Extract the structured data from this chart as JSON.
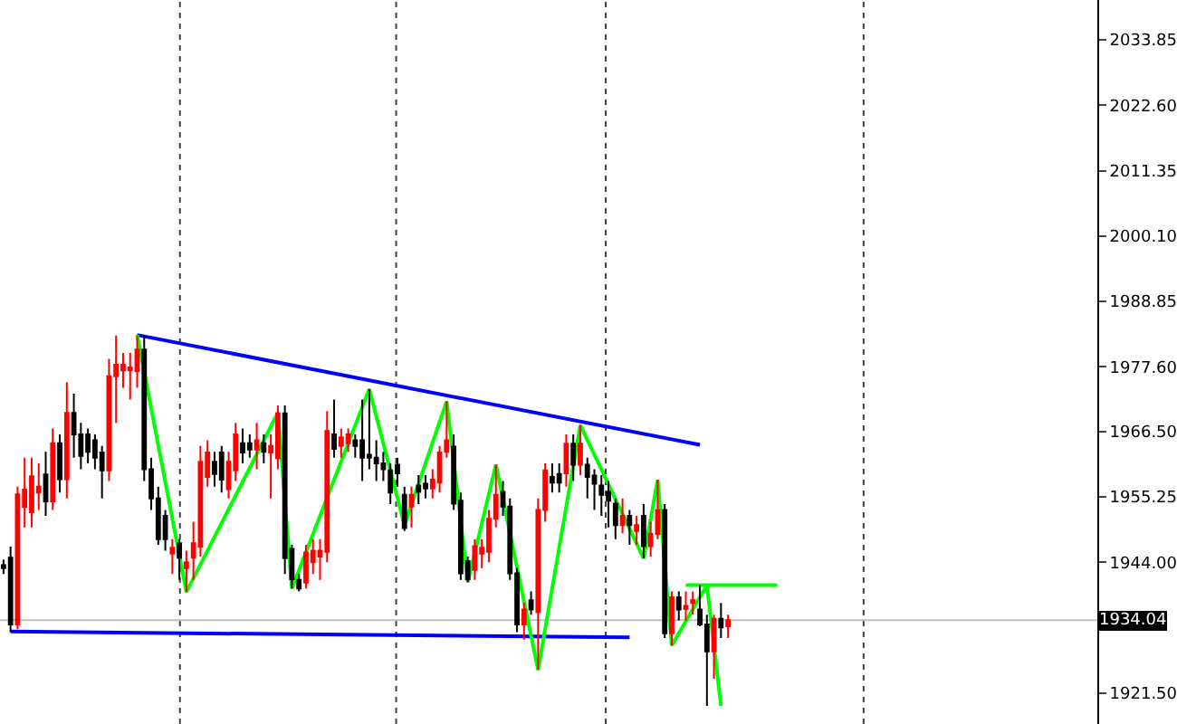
{
  "chart_data": {
    "type": "candlestick",
    "categories": [
      null,
      null,
      null,
      null,
      null,
      null,
      null,
      null,
      null,
      null,
      null,
      null,
      null,
      null,
      null,
      null,
      null,
      null,
      null,
      null,
      null,
      null,
      null,
      null,
      null,
      null,
      null,
      null,
      null,
      null,
      null,
      null,
      null,
      null,
      null,
      null,
      null,
      null,
      null,
      null,
      null,
      null,
      null,
      null,
      null,
      null,
      null,
      null,
      null,
      null,
      null,
      null,
      null,
      null,
      null,
      null,
      null,
      null,
      null,
      null,
      null,
      null,
      null,
      null,
      null,
      null,
      null,
      null,
      null,
      null,
      null,
      null,
      null,
      null,
      null,
      null,
      null,
      null,
      null,
      null,
      null,
      null,
      null,
      null,
      null,
      null,
      null,
      null,
      null,
      null,
      null,
      null,
      null,
      null,
      null,
      null,
      null,
      null,
      null,
      null,
      null,
      null,
      null,
      null,
      null,
      null,
      null,
      null,
      null,
      null,
      null,
      null,
      null,
      null,
      null,
      null,
      null,
      null,
      null,
      null,
      null,
      null,
      null,
      null,
      null,
      null,
      null,
      null,
      null,
      null,
      null,
      null,
      null,
      null,
      null,
      null,
      null,
      null,
      null,
      null,
      null,
      null,
      null,
      null,
      null,
      null,
      null,
      null,
      null,
      null,
      null,
      null,
      null,
      null,
      null,
      null
    ],
    "ohlc": [
      [
        1943.5,
        1944.5,
        1942,
        1943
      ],
      [
        1944.8,
        1946.7,
        1932.0,
        1933.3
      ],
      [
        1933.3,
        1957,
        1932.5,
        1955.7
      ],
      [
        1953.5,
        1962,
        1950,
        1956.5
      ],
      [
        1952.6,
        1962,
        1950,
        1958.8
      ],
      [
        1956,
        1961,
        1953,
        1957
      ],
      [
        1959.1,
        1963,
        1952,
        1954.5
      ],
      [
        1954.5,
        1967,
        1953,
        1964.5
      ],
      [
        1964.5,
        1966,
        1956,
        1958.3
      ],
      [
        1958.3,
        1975,
        1955,
        1969.7
      ],
      [
        1969.7,
        1973,
        1962,
        1966
      ],
      [
        1966,
        1968,
        1960,
        1962.3
      ],
      [
        1966,
        1967,
        1961,
        1963
      ],
      [
        1965,
        1966,
        1960,
        1962
      ],
      [
        1962.9,
        1964,
        1955,
        1959.8
      ],
      [
        1959.8,
        1979,
        1958,
        1976
      ],
      [
        1976,
        1983,
        1968,
        1978
      ],
      [
        1977,
        1980,
        1974,
        1978
      ],
      [
        1977,
        1980,
        1972,
        1977.5
      ],
      [
        1976.9,
        1983,
        1974,
        1980.6
      ],
      [
        1980.6,
        1983.1,
        1958,
        1960
      ],
      [
        1960,
        1962,
        1953,
        1955
      ],
      [
        1955,
        1957,
        1947,
        1948
      ],
      [
        1952,
        1953,
        1946,
        1948
      ],
      [
        1945.5,
        1948,
        1942,
        1946.5
      ],
      [
        1947.3,
        1948,
        1941,
        1944.8
      ],
      [
        1943,
        1946,
        1938.9,
        1944
      ],
      [
        1944.8,
        1951,
        1941,
        1947.3
      ],
      [
        1946.7,
        1964,
        1945,
        1961.3
      ],
      [
        1958.7,
        1965,
        1957,
        1962.9
      ],
      [
        1961.3,
        1963,
        1957,
        1959.2
      ],
      [
        1962.9,
        1964,
        1956,
        1958.2
      ],
      [
        1956.6,
        1963,
        1955,
        1961.3
      ],
      [
        1959.8,
        1968,
        1958,
        1966
      ],
      [
        1964.5,
        1967,
        1961,
        1962.9
      ],
      [
        1964.5,
        1966,
        1962,
        1963.4
      ],
      [
        1963.4,
        1968,
        1960,
        1965
      ],
      [
        1964.5,
        1966,
        1961,
        1963
      ],
      [
        1962.9,
        1966,
        1955,
        1964
      ],
      [
        1961.9,
        1971,
        1960,
        1969.6
      ],
      [
        1969.6,
        1971,
        1942,
        1944.7
      ],
      [
        1946.3,
        1947,
        1939.5,
        1941.1
      ],
      [
        1941,
        1942,
        1939,
        1939.5
      ],
      [
        1940.5,
        1947,
        1939.5,
        1945.7
      ],
      [
        1944,
        1948,
        1942,
        1946
      ],
      [
        1945,
        1948,
        1941,
        1946
      ],
      [
        1945.8,
        1970,
        1944,
        1966.6
      ],
      [
        1966,
        1972,
        1962,
        1963.5
      ],
      [
        1964,
        1967,
        1962,
        1965.5
      ],
      [
        1964.5,
        1967,
        1963,
        1966
      ],
      [
        1965,
        1966,
        1962,
        1964
      ],
      [
        1965,
        1972,
        1958,
        1962
      ],
      [
        1962.5,
        1973.8,
        1960,
        1962
      ],
      [
        1962,
        1965,
        1958,
        1961
      ],
      [
        1961,
        1963,
        1958,
        1960
      ],
      [
        1959.8,
        1961,
        1954,
        1956
      ],
      [
        1960.8,
        1962,
        1957,
        1959.3
      ],
      [
        1955.6,
        1957,
        1949.4,
        1949.9
      ],
      [
        1953.6,
        1957,
        1950,
        1955.6
      ],
      [
        1957.2,
        1959,
        1954,
        1956.1
      ],
      [
        1957.5,
        1959,
        1955,
        1956.7
      ],
      [
        1956.7,
        1960,
        1955,
        1958.2
      ],
      [
        1957.7,
        1964,
        1956,
        1962.9
      ],
      [
        1963,
        1971.7,
        1962,
        1965
      ],
      [
        1963.9,
        1966,
        1953,
        1954.1
      ],
      [
        1954.6,
        1956,
        1941,
        1942.1
      ],
      [
        1944.2,
        1945,
        1940.6,
        1941.1
      ],
      [
        1942.7,
        1948,
        1941,
        1946.8
      ],
      [
        1945.5,
        1948,
        1943,
        1946.5
      ],
      [
        1945.8,
        1953,
        1944,
        1951.5
      ],
      [
        1951.5,
        1960.8,
        1950,
        1955.6
      ],
      [
        1956.1,
        1958,
        1952,
        1953.6
      ],
      [
        1953.6,
        1955,
        1941,
        1942.1
      ],
      [
        1942.1,
        1943,
        1932,
        1933.3
      ],
      [
        1933.3,
        1937,
        1930.7,
        1935.9
      ],
      [
        1937.5,
        1939,
        1935,
        1935.9
      ],
      [
        1935.4,
        1955,
        1925.5,
        1953
      ],
      [
        1953,
        1961,
        1951,
        1959.8
      ],
      [
        1958.7,
        1961,
        1956,
        1957.7
      ],
      [
        1959.2,
        1961,
        1956,
        1957.7
      ],
      [
        1959.3,
        1966,
        1957,
        1964.4
      ],
      [
        1964.4,
        1966,
        1958,
        1960.8
      ],
      [
        1960.8,
        1967.6,
        1959,
        1964.4
      ],
      [
        1960.8,
        1962,
        1955,
        1958.7
      ],
      [
        1958.9,
        1960,
        1953,
        1957.5
      ],
      [
        1957.2,
        1959,
        1952,
        1955.6
      ],
      [
        1956.1,
        1958,
        1950,
        1954.6
      ],
      [
        1954.1,
        1955,
        1948,
        1950.4
      ],
      [
        1950.4,
        1955,
        1949,
        1952
      ],
      [
        1952,
        1953,
        1947,
        1950.4
      ],
      [
        1949.4,
        1952,
        1947,
        1950.4
      ],
      [
        1952,
        1954,
        1944.7,
        1946.8
      ],
      [
        1946.8,
        1951,
        1945,
        1948.9
      ],
      [
        1948.9,
        1958.2,
        1948,
        1953
      ],
      [
        1953,
        1954,
        1931,
        1931.8
      ],
      [
        1931.8,
        1939,
        1929.7,
        1938
      ],
      [
        1938,
        1939,
        1934,
        1935.9
      ],
      [
        1936,
        1939,
        1934,
        1936.5
      ],
      [
        1937,
        1939,
        1935,
        1937.5
      ],
      [
        1935.9,
        1940.1,
        1933,
        1933.3
      ],
      [
        1933.3,
        1935,
        1919.3,
        1928.7
      ],
      [
        1928.7,
        1935,
        1924,
        1934.3
      ],
      [
        1934.3,
        1937,
        1931,
        1932.8
      ],
      [
        1933,
        1935,
        1931,
        1934.04
      ],
      null,
      null,
      null,
      null,
      null,
      null,
      null,
      null,
      null,
      null,
      null,
      null,
      null,
      null,
      null,
      null,
      null,
      null,
      null,
      null,
      null,
      null,
      null,
      null,
      null,
      null,
      null,
      null,
      null,
      null,
      null,
      null,
      null,
      null,
      null,
      null,
      null,
      null,
      null,
      null,
      null,
      null,
      null,
      null,
      null,
      null,
      null,
      null,
      null,
      null,
      null,
      null
    ],
    "series": [
      {
        "type": "line",
        "color": "#0000ff",
        "values": [
          null,
          null,
          null,
          null,
          null,
          null,
          null,
          null,
          null,
          null,
          null,
          null,
          null,
          null,
          null,
          null,
          null,
          null,
          null,
          1983.1,
          null,
          null,
          null,
          null,
          null,
          null,
          null,
          null,
          null,
          null,
          null,
          null,
          null,
          null,
          null,
          null,
          null,
          null,
          null,
          null,
          null,
          null,
          null,
          null,
          null,
          null,
          null,
          null,
          null,
          null,
          null,
          null,
          null,
          null,
          null,
          null,
          null,
          null,
          null,
          null,
          null,
          null,
          null,
          null,
          null,
          null,
          null,
          null,
          null,
          null,
          null,
          null,
          null,
          null,
          null,
          null,
          null,
          null,
          null,
          null,
          null,
          null,
          null,
          null,
          null,
          null,
          null,
          null,
          null,
          null,
          null,
          null,
          null,
          null,
          null,
          null,
          null,
          null,
          null,
          1964.2,
          null,
          null,
          null,
          null,
          null,
          null,
          null,
          null,
          null,
          null,
          null,
          null,
          null,
          null,
          null,
          null,
          null,
          null,
          null,
          null,
          null,
          null,
          null,
          null,
          null,
          null,
          null,
          null,
          null,
          null,
          null,
          null,
          null,
          null,
          null,
          null,
          null,
          null,
          null,
          null,
          null,
          null,
          null,
          null,
          null,
          null,
          null,
          null,
          null,
          null,
          null,
          null,
          null,
          null,
          null,
          null
        ]
      },
      {
        "type": "line",
        "color": "#0000ff",
        "values": [
          null,
          1932.1,
          null,
          null,
          null,
          null,
          null,
          null,
          null,
          null,
          null,
          null,
          null,
          null,
          null,
          null,
          null,
          null,
          null,
          null,
          null,
          null,
          null,
          null,
          null,
          null,
          null,
          null,
          null,
          null,
          null,
          null,
          null,
          null,
          null,
          null,
          null,
          null,
          null,
          null,
          null,
          null,
          null,
          null,
          null,
          null,
          null,
          null,
          null,
          null,
          null,
          null,
          null,
          null,
          null,
          null,
          null,
          null,
          null,
          null,
          null,
          null,
          null,
          null,
          null,
          null,
          null,
          null,
          null,
          null,
          null,
          null,
          null,
          null,
          null,
          null,
          null,
          null,
          null,
          null,
          null,
          null,
          null,
          null,
          null,
          null,
          null,
          null,
          null,
          1931.1,
          null,
          null,
          null,
          null,
          null,
          null,
          null,
          null,
          null,
          null,
          null,
          null,
          null,
          null,
          null,
          null,
          null,
          null,
          null,
          null,
          null,
          null,
          null,
          null,
          null,
          null,
          null,
          null,
          null,
          null,
          null,
          null,
          null,
          null,
          null,
          null,
          null,
          null,
          null,
          null,
          null,
          null,
          null,
          null,
          null,
          null,
          null,
          null,
          null,
          null,
          null,
          null,
          null,
          null,
          null,
          null,
          null,
          null,
          null,
          null,
          null,
          null,
          null,
          null,
          null,
          null
        ]
      },
      {
        "type": "line",
        "color": "#00ff00",
        "values": [
          null,
          null,
          null,
          null,
          null,
          null,
          null,
          null,
          null,
          null,
          null,
          null,
          null,
          null,
          null,
          null,
          null,
          null,
          null,
          null,
          null,
          null,
          null,
          null,
          null,
          null,
          null,
          null,
          null,
          null,
          null,
          null,
          null,
          null,
          null,
          null,
          null,
          null,
          null,
          null,
          null,
          null,
          null,
          null,
          null,
          null,
          null,
          null,
          null,
          null,
          null,
          null,
          null,
          null,
          null,
          null,
          null,
          null,
          null,
          null,
          null,
          null,
          null,
          null,
          null,
          null,
          null,
          null,
          null,
          null,
          null,
          null,
          null,
          null,
          null,
          null,
          null,
          null,
          null,
          null,
          null,
          null,
          null,
          null,
          null,
          null,
          null,
          null,
          null,
          null,
          null,
          null,
          null,
          null,
          null,
          null,
          null,
          1940.1,
          null,
          null,
          null,
          null,
          null,
          null,
          null,
          null,
          null,
          null,
          null,
          null,
          1940.1,
          null,
          null,
          null,
          null,
          null,
          null,
          null,
          null,
          null,
          null,
          null,
          null,
          null,
          null,
          null,
          null,
          null,
          null,
          null,
          null,
          null,
          null,
          null,
          null,
          null,
          null,
          null,
          null,
          null,
          null,
          null,
          null,
          null,
          null,
          null,
          null,
          null,
          null,
          null,
          null,
          null,
          null,
          null,
          null,
          null
        ]
      },
      {
        "type": "line",
        "color": "#00ff00",
        "values": [
          null,
          null,
          null,
          null,
          null,
          null,
          null,
          null,
          null,
          null,
          null,
          null,
          null,
          null,
          null,
          null,
          null,
          null,
          null,
          1983.1,
          null,
          null,
          null,
          null,
          null,
          null,
          1938.9,
          null,
          null,
          null,
          null,
          null,
          null,
          null,
          null,
          null,
          null,
          null,
          null,
          1969.7,
          null,
          1939.5,
          null,
          null,
          null,
          null,
          null,
          null,
          null,
          null,
          null,
          null,
          1973.8,
          null,
          null,
          null,
          null,
          1950.4,
          null,
          null,
          null,
          null,
          null,
          1971.7,
          null,
          null,
          1940.6,
          null,
          null,
          null,
          1960.8,
          null,
          null,
          null,
          null,
          null,
          1925.5,
          null,
          null,
          null,
          null,
          null,
          1967.6,
          null,
          null,
          null,
          null,
          null,
          null,
          null,
          null,
          1944.7,
          null,
          1958.2,
          null,
          1929.7,
          null,
          null,
          null,
          null,
          1940.1,
          null,
          1919.3,
          null,
          null,
          null,
          null,
          null,
          null,
          null,
          null,
          null,
          null,
          null,
          null,
          null,
          null,
          null,
          null,
          null,
          null,
          null,
          null,
          null,
          null,
          null,
          null,
          null,
          null,
          null,
          null,
          null,
          null,
          null,
          null,
          null,
          null,
          null,
          null,
          null,
          null,
          null,
          null,
          null,
          null,
          null,
          null,
          null,
          null,
          null,
          null,
          null,
          null,
          null,
          null,
          null
        ]
      }
    ],
    "ylim": [
      1916.2,
      2040.7
    ],
    "yticks": [
      {
        "value": 1921.5,
        "label": "1921.50"
      },
      {
        "value": 1932.75,
        "label": null
      },
      {
        "value": 1944.0,
        "label": "1944.00"
      },
      {
        "value": 1955.25,
        "label": "1955.25"
      },
      {
        "value": 1966.5,
        "label": "1966.50"
      },
      {
        "value": 1977.6,
        "label": "1977.60"
      },
      {
        "value": 1988.85,
        "label": "1988.85"
      },
      {
        "value": 2000.1,
        "label": "2000.10"
      },
      2011.35,
      {
        "value": 2022.6,
        "label": "2022.60"
      },
      2033.85
    ],
    "ref_lines": [
      {
        "axis": "y",
        "value": 1934.04,
        "label": "1934.04",
        "color": "#c0c0c0"
      }
    ],
    "tick_labels": "y",
    "grid": false,
    "marker": "none"
  }
}
